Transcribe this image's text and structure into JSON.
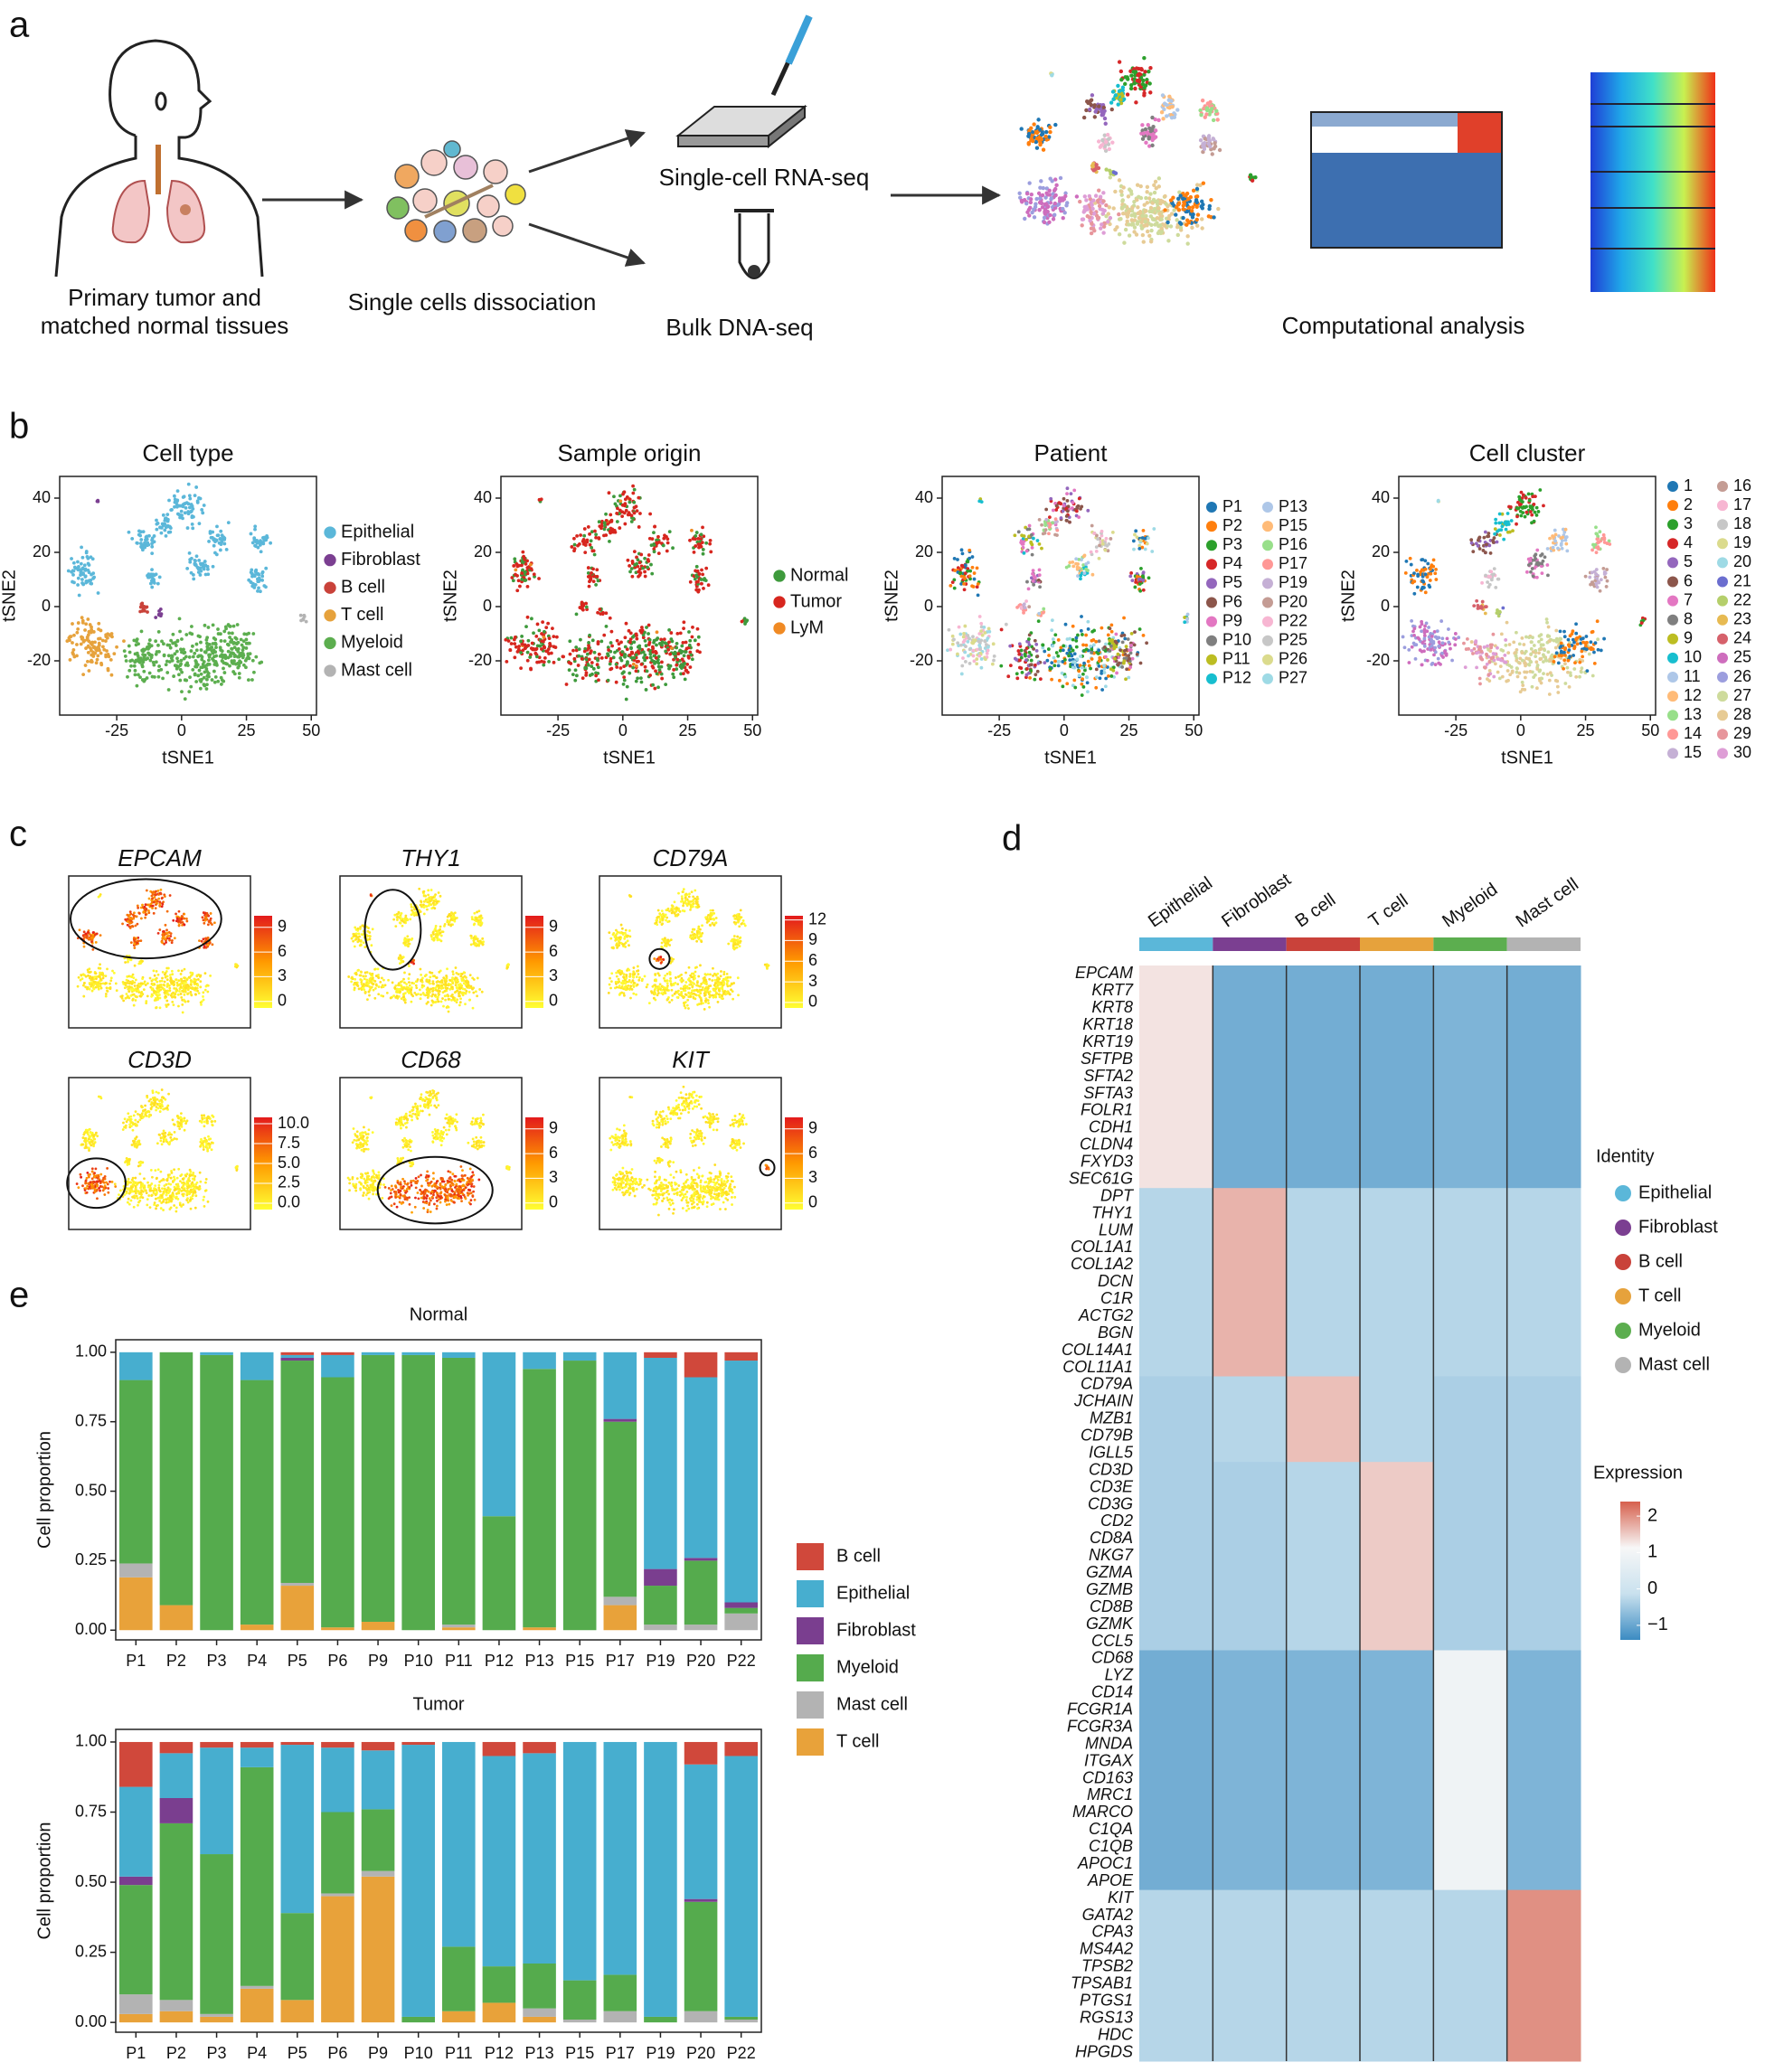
{
  "panels": [
    "a",
    "b",
    "c",
    "d",
    "e"
  ],
  "workflow": {
    "tissue": [
      "Primary tumor and",
      "matched normal tissues"
    ],
    "dissociation": "Single cells dissociation",
    "rna": "Single-cell RNA-seq",
    "dna": "Bulk DNA-seq",
    "analysis": "Computational analysis"
  },
  "chart_data": [
    {
      "type": "scatter",
      "title": "Cell type",
      "xlabel": "tSNE1",
      "ylabel": "tSNE2",
      "xlim": [
        -47,
        52
      ],
      "ylim": [
        -40,
        48
      ],
      "xticks": [
        -25,
        0,
        25,
        50
      ],
      "yticks": [
        -20,
        0,
        20,
        40
      ],
      "legend": [
        {
          "name": "Epithelial",
          "color": "#5bb7d9"
        },
        {
          "name": "Fibroblast",
          "color": "#7b3f91"
        },
        {
          "name": "B cell",
          "color": "#c9423a"
        },
        {
          "name": "T cell",
          "color": "#e6a23c"
        },
        {
          "name": "Myeloid",
          "color": "#5cae4f"
        },
        {
          "name": "Mast cell",
          "color": "#b3b3b3"
        }
      ]
    },
    {
      "type": "scatter",
      "title": "Sample origin",
      "xlabel": "tSNE1",
      "ylabel": "tSNE2",
      "xlim": [
        -47,
        52
      ],
      "ylim": [
        -40,
        48
      ],
      "xticks": [
        -25,
        0,
        25,
        50
      ],
      "yticks": [
        -20,
        0,
        20,
        40
      ],
      "legend": [
        {
          "name": "Normal",
          "color": "#3e9a3c"
        },
        {
          "name": "Tumor",
          "color": "#d7261e"
        },
        {
          "name": "LyM",
          "color": "#f08a24"
        }
      ]
    },
    {
      "type": "scatter",
      "title": "Patient",
      "xlabel": "tSNE1",
      "ylabel": "tSNE2",
      "xlim": [
        -47,
        52
      ],
      "ylim": [
        -40,
        48
      ],
      "xticks": [
        -25,
        0,
        25,
        50
      ],
      "yticks": [
        -20,
        0,
        20,
        40
      ],
      "legend": [
        {
          "name": "P1",
          "color": "#1f77b4"
        },
        {
          "name": "P2",
          "color": "#ff7f0e"
        },
        {
          "name": "P3",
          "color": "#2ca02c"
        },
        {
          "name": "P4",
          "color": "#d62728"
        },
        {
          "name": "P5",
          "color": "#9467bd"
        },
        {
          "name": "P6",
          "color": "#8c564b"
        },
        {
          "name": "P9",
          "color": "#e377c2"
        },
        {
          "name": "P10",
          "color": "#7f7f7f"
        },
        {
          "name": "P11",
          "color": "#bcbd22"
        },
        {
          "name": "P12",
          "color": "#17becf"
        },
        {
          "name": "P13",
          "color": "#aec7e8"
        },
        {
          "name": "P15",
          "color": "#ffbb78"
        },
        {
          "name": "P16",
          "color": "#98df8a"
        },
        {
          "name": "P17",
          "color": "#ff9896"
        },
        {
          "name": "P19",
          "color": "#c5b0d5"
        },
        {
          "name": "P20",
          "color": "#c49c94"
        },
        {
          "name": "P22",
          "color": "#f7b6d2"
        },
        {
          "name": "P25",
          "color": "#c7c7c7"
        },
        {
          "name": "P26",
          "color": "#dbdb8d"
        },
        {
          "name": "P27",
          "color": "#9edae5"
        }
      ]
    },
    {
      "type": "scatter",
      "title": "Cell cluster",
      "xlabel": "tSNE1",
      "ylabel": "tSNE2",
      "xlim": [
        -47,
        52
      ],
      "ylim": [
        -40,
        48
      ],
      "xticks": [
        -25,
        0,
        25,
        50
      ],
      "yticks": [
        -20,
        0,
        20,
        40
      ],
      "legend": [
        {
          "name": "1",
          "color": "#1f77b4"
        },
        {
          "name": "2",
          "color": "#ff7f0e"
        },
        {
          "name": "3",
          "color": "#2ca02c"
        },
        {
          "name": "4",
          "color": "#d62728"
        },
        {
          "name": "5",
          "color": "#9467bd"
        },
        {
          "name": "6",
          "color": "#8c564b"
        },
        {
          "name": "7",
          "color": "#e377c2"
        },
        {
          "name": "8",
          "color": "#7f7f7f"
        },
        {
          "name": "9",
          "color": "#bcbd22"
        },
        {
          "name": "10",
          "color": "#17becf"
        },
        {
          "name": "11",
          "color": "#aec7e8"
        },
        {
          "name": "12",
          "color": "#ffbb78"
        },
        {
          "name": "13",
          "color": "#98df8a"
        },
        {
          "name": "14",
          "color": "#ff9896"
        },
        {
          "name": "15",
          "color": "#c5b0d5"
        },
        {
          "name": "16",
          "color": "#c49c94"
        },
        {
          "name": "17",
          "color": "#f7b6d2"
        },
        {
          "name": "18",
          "color": "#c7c7c7"
        },
        {
          "name": "19",
          "color": "#dbdb8d"
        },
        {
          "name": "20",
          "color": "#9edae5"
        },
        {
          "name": "21",
          "color": "#6b6ecf"
        },
        {
          "name": "22",
          "color": "#b5cf6b"
        },
        {
          "name": "23",
          "color": "#e7ba52"
        },
        {
          "name": "24",
          "color": "#d6616b"
        },
        {
          "name": "25",
          "color": "#ce6dbd"
        },
        {
          "name": "26",
          "color": "#9c9ede"
        },
        {
          "name": "27",
          "color": "#cedb9c"
        },
        {
          "name": "28",
          "color": "#e7cb94"
        },
        {
          "name": "29",
          "color": "#e7969c"
        },
        {
          "name": "30",
          "color": "#de9ed6"
        }
      ]
    },
    {
      "type": "feature",
      "title": "EPCAM",
      "clim": [
        -0.8,
        10.4
      ],
      "cticks": [
        0,
        3,
        6,
        9
      ],
      "colors": [
        "#ffff33",
        "#ff9a00",
        "#e31a1c"
      ]
    },
    {
      "type": "feature",
      "title": "THY1",
      "clim": [
        -0.8,
        10.4
      ],
      "cticks": [
        0,
        3,
        6,
        9
      ],
      "colors": [
        "#ffff33",
        "#ff9a00",
        "#e31a1c"
      ]
    },
    {
      "type": "feature",
      "title": "CD79A",
      "clim": [
        -0.8,
        12.6
      ],
      "cticks": [
        0,
        3,
        6,
        9,
        12
      ],
      "colors": [
        "#ffff33",
        "#ff9a00",
        "#e31a1c"
      ]
    },
    {
      "type": "feature",
      "title": "CD3D",
      "clim": [
        -0.8,
        10.8
      ],
      "cticks": [
        {
          "value": 0,
          "label": "0.0"
        },
        {
          "value": 2.5,
          "label": "2.5"
        },
        {
          "value": 5,
          "label": "5.0"
        },
        {
          "value": 7.5,
          "label": "7.5"
        },
        {
          "value": 10,
          "label": "10.0"
        }
      ],
      "colors": [
        "#ffff33",
        "#ff9a00",
        "#e31a1c"
      ]
    },
    {
      "type": "feature",
      "title": "CD68",
      "clim": [
        -0.8,
        10.4
      ],
      "cticks": [
        0,
        3,
        6,
        9
      ],
      "colors": [
        "#ffff33",
        "#ff9a00",
        "#e31a1c"
      ]
    },
    {
      "type": "feature",
      "title": "KIT",
      "clim": [
        -0.8,
        10.4
      ],
      "cticks": [
        0,
        3,
        6,
        9
      ],
      "colors": [
        "#ffff33",
        "#ff9a00",
        "#e31a1c"
      ]
    },
    {
      "type": "heatmap",
      "columns": [
        "Epithelial",
        "Fibroblast",
        "B cell",
        "T cell",
        "Myeloid",
        "Mast cell"
      ],
      "column_colors": [
        "#5bb7d9",
        "#7b3f91",
        "#c9423a",
        "#e6a23c",
        "#5cae4f",
        "#b3b3b3"
      ],
      "rows": [
        [
          "EPCAM",
          "KRT7",
          "KRT8",
          "KRT18",
          "KRT19",
          "SFTPB",
          "SFTA2",
          "SFTA3",
          "FOLR1",
          "CDH1",
          "CLDN4",
          "FXYD3",
          "SEC61G"
        ],
        [
          "DPT",
          "THY1",
          "LUM",
          "COL1A1",
          "COL1A2",
          "DCN",
          "C1R",
          "ACTG2",
          "BGN",
          "COL14A1",
          "COL11A1"
        ],
        [
          "CD79A",
          "JCHAIN",
          "MZB1",
          "CD79B",
          "IGLL5"
        ],
        [
          "CD3D",
          "CD3E",
          "CD3G",
          "CD2",
          "CD8A",
          "NKG7",
          "GZMA",
          "GZMB",
          "CD8B",
          "GZMK",
          "CCL5"
        ],
        [
          "CD68",
          "LYZ",
          "CD14",
          "FCGR1A",
          "FCGR3A",
          "MNDA",
          "ITGAX",
          "CD163",
          "MRC1",
          "MARCO",
          "C1QA",
          "C1QB",
          "APOC1",
          "APOE"
        ],
        [
          "KIT",
          "GATA2",
          "CPA3",
          "MS4A2",
          "TPSB2",
          "TPSAB1",
          "PTGS1",
          "RGS13",
          "HDC",
          "HPGDS"
        ]
      ],
      "values": [
        [
          1.3,
          -0.9,
          -0.9,
          -0.9,
          -0.8,
          -0.9
        ],
        [
          -0.3,
          1.7,
          -0.3,
          -0.3,
          -0.3,
          -0.3
        ],
        [
          -0.4,
          -0.3,
          1.6,
          -0.3,
          -0.4,
          -0.4
        ],
        [
          -0.4,
          -0.4,
          -0.3,
          1.5,
          -0.4,
          -0.4
        ],
        [
          -0.9,
          -0.8,
          -0.8,
          -0.8,
          0.9,
          -0.8
        ],
        [
          -0.3,
          -0.3,
          -0.3,
          -0.3,
          -0.3,
          2.0
        ]
      ],
      "legend_title": "Identity",
      "colorbar_title": "Expression",
      "clim": [
        -1.4,
        2.4
      ],
      "cticks": [
        2,
        1,
        0,
        {
          "value": -1,
          "label": "−1"
        }
      ],
      "colors": [
        "#3b8bc2",
        "#c9e1ee",
        "#f7f7f7",
        "#d6604d"
      ]
    },
    {
      "type": "bar",
      "stacked": true,
      "legend": true,
      "title": "Normal",
      "ylabel": "Cell proportion",
      "categories": [
        "P1",
        "P2",
        "P3",
        "P4",
        "P5",
        "P6",
        "P9",
        "P10",
        "P11",
        "P12",
        "P13",
        "P15",
        "P17",
        "P19",
        "P20",
        "P22"
      ],
      "ylim": [
        -0.035,
        1.045
      ],
      "yticks": [
        {
          "value": 0,
          "label": "0.00"
        },
        {
          "value": 0.25,
          "label": "0.25"
        },
        {
          "value": 0.5,
          "label": "0.50"
        },
        {
          "value": 0.75,
          "label": "0.75"
        },
        {
          "value": 1,
          "label": "1.00"
        }
      ],
      "series": [
        {
          "name": "T cell",
          "color": "#e8a23a",
          "values": [
            0.19,
            0.09,
            0,
            0.02,
            0.16,
            0.01,
            0.03,
            0,
            0.01,
            0,
            0.01,
            0,
            0.09,
            0,
            0,
            0
          ]
        },
        {
          "name": "Mast cell",
          "color": "#b3b3b3",
          "values": [
            0.05,
            0,
            0,
            0,
            0.01,
            0,
            0,
            0,
            0.01,
            0,
            0,
            0,
            0.03,
            0.02,
            0.02,
            0.06
          ]
        },
        {
          "name": "Myeloid",
          "color": "#55ab4d",
          "values": [
            0.66,
            0.91,
            0.99,
            0.88,
            0.8,
            0.9,
            0.96,
            0.99,
            0.96,
            0.41,
            0.93,
            0.97,
            0.63,
            0.14,
            0.23,
            0.02
          ]
        },
        {
          "name": "Fibroblast",
          "color": "#7a3e8f",
          "values": [
            0,
            0,
            0,
            0,
            0.01,
            0,
            0,
            0,
            0,
            0,
            0,
            0,
            0.01,
            0.06,
            0.01,
            0.02
          ]
        },
        {
          "name": "Epithelial",
          "color": "#47aecf",
          "values": [
            0.1,
            0,
            0.01,
            0.1,
            0.01,
            0.08,
            0.01,
            0.01,
            0.02,
            0.59,
            0.06,
            0.03,
            0.24,
            0.76,
            0.65,
            0.87
          ]
        },
        {
          "name": "B cell",
          "color": "#d0483b",
          "values": [
            0,
            0,
            0,
            0,
            0.01,
            0.01,
            0,
            0,
            0,
            0,
            0,
            0,
            0,
            0.02,
            0.09,
            0.03
          ]
        }
      ]
    },
    {
      "type": "bar",
      "stacked": true,
      "legend": false,
      "title": "Tumor",
      "ylabel": "Cell proportion",
      "categories": [
        "P1",
        "P2",
        "P3",
        "P4",
        "P5",
        "P6",
        "P9",
        "P10",
        "P11",
        "P12",
        "P13",
        "P15",
        "P17",
        "P19",
        "P20",
        "P22"
      ],
      "ylim": [
        -0.035,
        1.045
      ],
      "yticks": [
        {
          "value": 0,
          "label": "0.00"
        },
        {
          "value": 0.25,
          "label": "0.25"
        },
        {
          "value": 0.5,
          "label": "0.50"
        },
        {
          "value": 0.75,
          "label": "0.75"
        },
        {
          "value": 1,
          "label": "1.00"
        }
      ],
      "series": [
        {
          "color": "#e8a23a",
          "values": [
            0.03,
            0.04,
            0.02,
            0.12,
            0.08,
            0.45,
            0.52,
            0,
            0.04,
            0.07,
            0.02,
            0,
            0,
            0,
            0,
            0
          ]
        },
        {
          "color": "#b3b3b3",
          "values": [
            0.07,
            0.04,
            0.01,
            0.01,
            0,
            0.01,
            0.02,
            0,
            0,
            0,
            0.03,
            0.01,
            0.04,
            0,
            0.04,
            0.01
          ]
        },
        {
          "color": "#55ab4d",
          "values": [
            0.39,
            0.63,
            0.57,
            0.78,
            0.31,
            0.29,
            0.22,
            0.02,
            0.23,
            0.13,
            0.16,
            0.14,
            0.13,
            0.02,
            0.39,
            0.01
          ]
        },
        {
          "color": "#7a3e8f",
          "values": [
            0.03,
            0.09,
            0,
            0,
            0,
            0,
            0,
            0,
            0,
            0,
            0,
            0,
            0,
            0,
            0.01,
            0
          ]
        },
        {
          "color": "#47aecf",
          "values": [
            0.32,
            0.16,
            0.38,
            0.07,
            0.6,
            0.23,
            0.21,
            0.97,
            0.73,
            0.75,
            0.75,
            0.85,
            0.83,
            0.98,
            0.48,
            0.93
          ]
        },
        {
          "color": "#d0483b",
          "values": [
            0.16,
            0.04,
            0.02,
            0.02,
            0.01,
            0.02,
            0.03,
            0.01,
            0,
            0.05,
            0.04,
            0,
            0,
            0,
            0.08,
            0.05
          ]
        }
      ]
    }
  ]
}
